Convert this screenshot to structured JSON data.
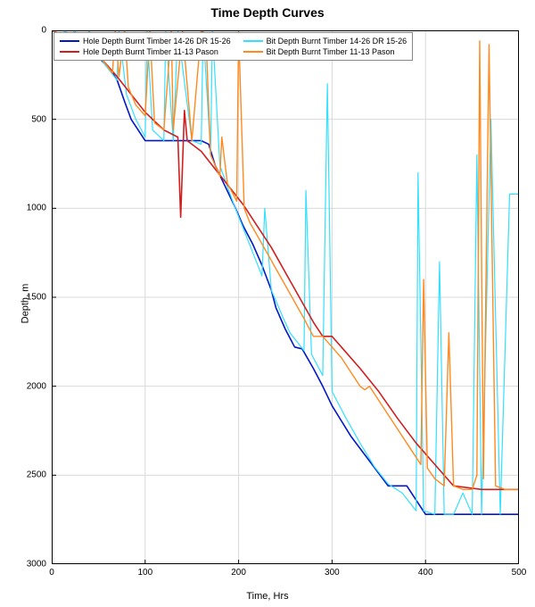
{
  "chart": {
    "type": "line",
    "title": "Time Depth Curves",
    "title_fontsize": 14,
    "title_weight": "bold",
    "xlabel": "Time, Hrs",
    "ylabel": "Depth, m",
    "label_fontsize": 11,
    "tick_fontsize": 10,
    "xlim": [
      0,
      500
    ],
    "ylim": [
      3000,
      0
    ],
    "xtick_step": 100,
    "ytick_step": 500,
    "xticks": [
      0,
      100,
      200,
      300,
      400,
      500
    ],
    "yticks": [
      0,
      500,
      1000,
      1500,
      2000,
      2500,
      3000
    ],
    "background_color": "#ffffff",
    "plot_border_color": "#000000",
    "grid_color": "#d9d9d9",
    "grid_on": true,
    "plot_aspect_note": "y axis inverted (depth increases downward)",
    "legend": {
      "position": "top-left-inside",
      "border_color": "#888888",
      "background": "#ffffff",
      "fontsize": 9,
      "columns": 2
    },
    "series": [
      {
        "name": "Hole Depth Burnt Timber 14-26 DR 15-26",
        "color": "#0018c6",
        "line_width": 1.6,
        "dash": "solid",
        "x": [
          0,
          10,
          20,
          30,
          40,
          55,
          60,
          70,
          78,
          85,
          100,
          120,
          140,
          160,
          168,
          175,
          185,
          195,
          205,
          215,
          225,
          235,
          240,
          250,
          260,
          268,
          280,
          290,
          300,
          320,
          340,
          360,
          380,
          400,
          430,
          460,
          500
        ],
        "y": [
          0,
          30,
          45,
          50,
          80,
          180,
          200,
          280,
          400,
          500,
          620,
          620,
          620,
          620,
          640,
          760,
          870,
          980,
          1100,
          1200,
          1320,
          1460,
          1560,
          1680,
          1780,
          1790,
          1900,
          2000,
          2110,
          2280,
          2420,
          2560,
          2560,
          2720,
          2720,
          2720,
          2720
        ]
      },
      {
        "name": "Bit Depth Burnt Timber 14-26 DR 15-26",
        "color": "#33e0ff",
        "line_width": 1.2,
        "dash": "solid",
        "x": [
          0,
          12,
          14,
          22,
          24,
          38,
          40,
          55,
          70,
          72,
          80,
          90,
          100,
          102,
          108,
          120,
          122,
          130,
          135,
          150,
          160,
          162,
          170,
          172,
          180,
          195,
          210,
          225,
          228,
          235,
          248,
          255,
          270,
          272,
          278,
          290,
          295,
          300,
          315,
          330,
          345,
          360,
          375,
          390,
          392,
          398,
          410,
          415,
          420,
          430,
          440,
          450,
          455,
          460,
          470,
          480,
          490,
          500
        ],
        "y": [
          0,
          30,
          0,
          40,
          0,
          80,
          0,
          180,
          280,
          0,
          360,
          500,
          600,
          0,
          560,
          620,
          0,
          620,
          0,
          620,
          640,
          0,
          680,
          0,
          760,
          980,
          1180,
          1380,
          1000,
          1460,
          1620,
          1700,
          1800,
          900,
          1820,
          1940,
          300,
          2030,
          2180,
          2320,
          2450,
          2550,
          2600,
          2700,
          800,
          2700,
          2720,
          1300,
          2720,
          2720,
          2600,
          2720,
          700,
          2720,
          500,
          2720,
          920,
          920
        ]
      },
      {
        "name": "Hole Depth Burnt Timber 11-13 Pason",
        "color": "#d11f1f",
        "line_width": 1.6,
        "dash": "solid",
        "x": [
          0,
          12,
          25,
          40,
          55,
          70,
          85,
          100,
          120,
          135,
          138,
          142,
          145,
          160,
          175,
          190,
          205,
          220,
          235,
          250,
          265,
          280,
          290,
          300,
          310,
          330,
          350,
          370,
          390,
          410,
          430,
          460,
          500
        ],
        "y": [
          0,
          30,
          60,
          90,
          170,
          260,
          360,
          460,
          560,
          600,
          1050,
          450,
          620,
          680,
          780,
          880,
          980,
          1100,
          1220,
          1360,
          1500,
          1640,
          1720,
          1720,
          1780,
          1900,
          2030,
          2180,
          2320,
          2440,
          2560,
          2580,
          2580
        ]
      },
      {
        "name": "Bit Depth Burnt Timber 11-13 Pason",
        "color": "#ff8a1f",
        "line_width": 1.4,
        "dash": "solid",
        "x": [
          0,
          15,
          25,
          40,
          55,
          65,
          68,
          72,
          78,
          82,
          90,
          100,
          105,
          110,
          120,
          128,
          130,
          140,
          150,
          160,
          165,
          170,
          180,
          182,
          188,
          198,
          200,
          206,
          212,
          225,
          240,
          255,
          270,
          280,
          290,
          300,
          310,
          320,
          330,
          335,
          340,
          355,
          370,
          385,
          395,
          398,
          402,
          410,
          420,
          425,
          430,
          440,
          450,
          455,
          458,
          462,
          468,
          475,
          485,
          495,
          500
        ],
        "y": [
          0,
          40,
          60,
          100,
          170,
          240,
          0,
          260,
          0,
          320,
          420,
          480,
          0,
          520,
          560,
          0,
          560,
          0,
          620,
          0,
          30,
          700,
          820,
          600,
          860,
          960,
          0,
          1000,
          1080,
          1200,
          1340,
          1480,
          1620,
          1720,
          1720,
          1780,
          1840,
          1920,
          2000,
          2020,
          2000,
          2120,
          2240,
          2360,
          2440,
          1400,
          2460,
          2520,
          2560,
          1700,
          2560,
          2580,
          2580,
          2500,
          60,
          2520,
          80,
          2560,
          2580,
          2580,
          2580
        ]
      }
    ]
  }
}
